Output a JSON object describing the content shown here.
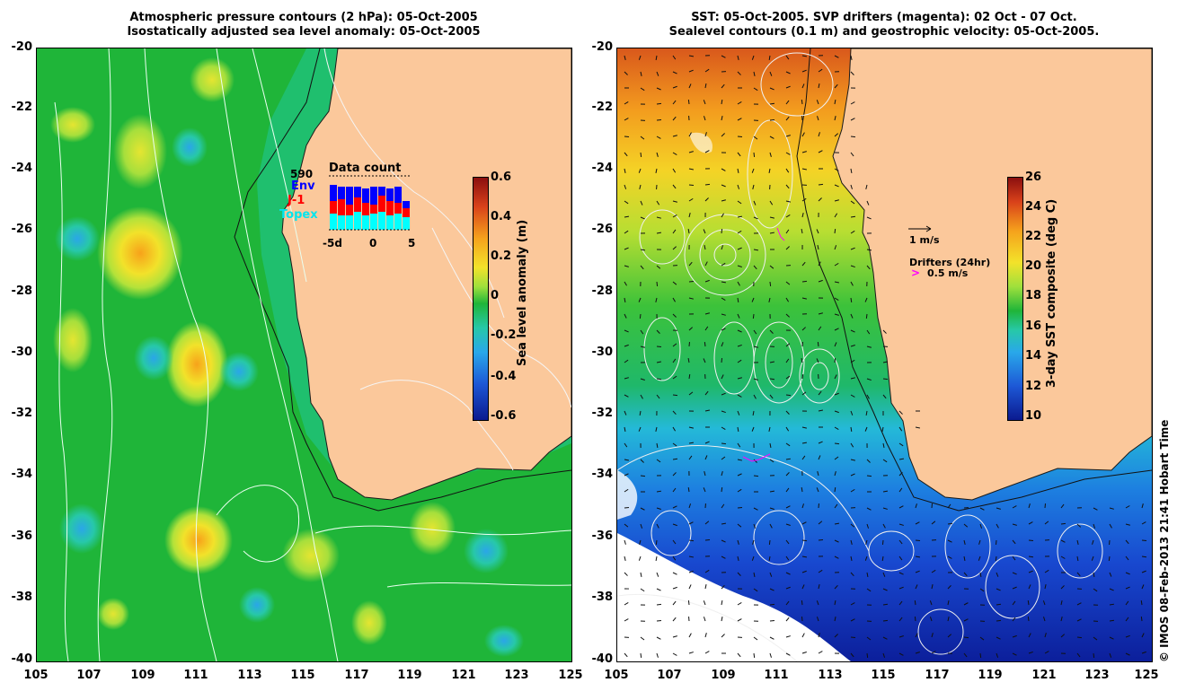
{
  "left_panel": {
    "title_line1": "Atmospheric pressure contours (2 hPa): 05-Oct-2005",
    "title_line2": "Isostatically adjusted sea level anomaly: 05-Oct-2005",
    "colorbar_title": "Sea level anomaly (m)",
    "colorbar_ticks": [
      "0.6",
      "0.4",
      "0.2",
      "0",
      "-0.2",
      "-0.4",
      "-0.6"
    ],
    "data_count": {
      "title": "Data count",
      "total": "590",
      "env_label": "Env",
      "j1_label": "J-1",
      "topex_label": "Topex",
      "x_ticks": [
        "-5d",
        "0",
        "5"
      ],
      "colors": {
        "env": "#0000ff",
        "j1": "#ff0000",
        "topex": "#00ffff"
      }
    }
  },
  "right_panel": {
    "title_line1": "SST: 05-Oct-2005. SVP drifters (magenta): 02 Oct - 07 Oct.",
    "title_line2": "Sealevel contours (0.1 m) and geostrophic velocity: 05-Oct-2005.",
    "colorbar_title": "3-day SST composite (deg C)",
    "colorbar_ticks": [
      "26",
      "24",
      "22",
      "20",
      "18",
      "16",
      "14",
      "12",
      "10"
    ],
    "velocity_scale_label": "1 m/s",
    "drifters_title": "Drifters (24hr)",
    "drifters_scale_label": "0.5 m/s",
    "drifter_color": "#ff00ff"
  },
  "y_ticks": [
    "-20",
    "-22",
    "-24",
    "-26",
    "-28",
    "-30",
    "-32",
    "-34",
    "-36",
    "-38",
    "-40"
  ],
  "x_ticks": [
    "105",
    "107",
    "109",
    "111",
    "113",
    "115",
    "117",
    "119",
    "121",
    "123",
    "125"
  ],
  "credit": "© IMOS 08-Feb-2013 21:41 Hobart Time",
  "colors": {
    "land": "#fbc89b",
    "ocean_base": "#1fb539"
  }
}
